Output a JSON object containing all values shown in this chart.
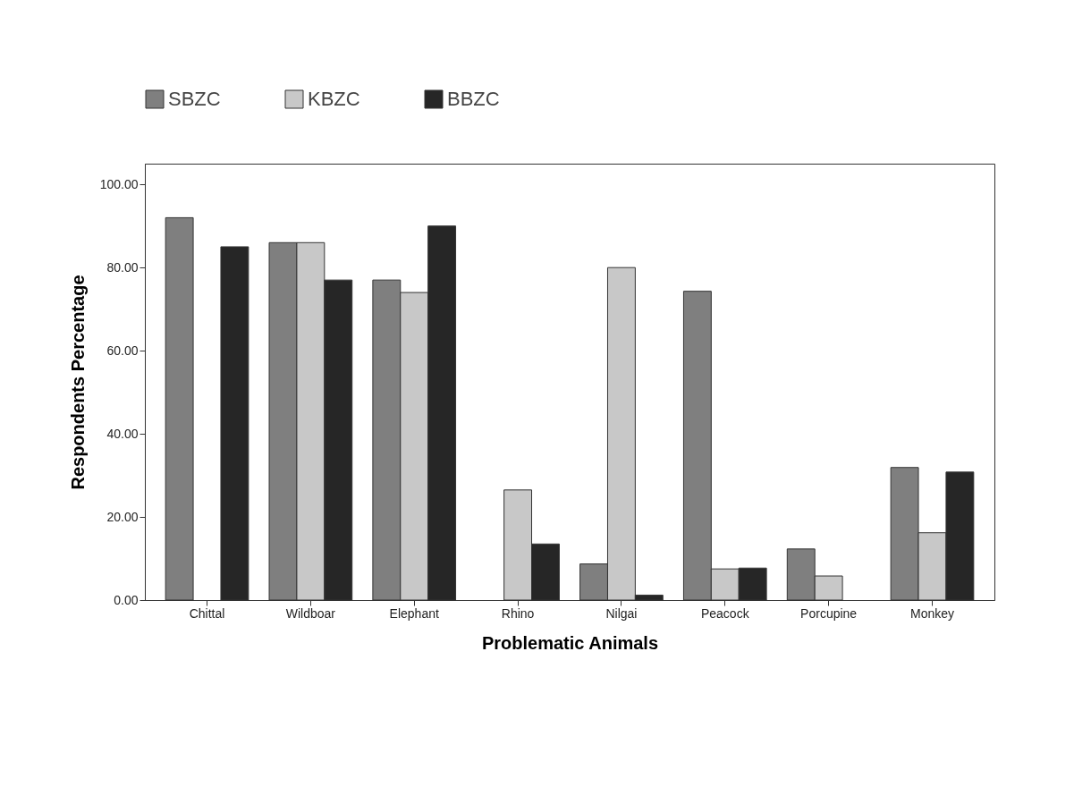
{
  "chart_data": {
    "type": "bar",
    "xlabel": "Problematic Animals",
    "ylabel": "Respondents Percentage",
    "categories": [
      "Chittal",
      "Wildboar",
      "Elephant",
      "Rhino",
      "Nilgai",
      "Peacock",
      "Porcupine",
      "Monkey"
    ],
    "series": [
      {
        "name": "SBZC",
        "color": "#7f7f7f",
        "values": [
          92,
          86,
          77,
          0,
          8.7,
          74.3,
          12.3,
          31.9
        ]
      },
      {
        "name": "KBZC",
        "color": "#c8c8c8",
        "values": [
          0,
          86,
          74,
          26.5,
          80,
          7.5,
          5.8,
          16.2
        ]
      },
      {
        "name": "BBZC",
        "color": "#262626",
        "values": [
          85,
          77,
          90,
          13.5,
          1.2,
          7.7,
          0,
          30.8
        ]
      }
    ],
    "ylim": [
      0,
      105
    ],
    "yticks": [
      {
        "value": 0,
        "label": "0.00"
      },
      {
        "value": 20,
        "label": "20.00"
      },
      {
        "value": 40,
        "label": "40.00"
      },
      {
        "value": 60,
        "label": "60.00"
      },
      {
        "value": 80,
        "label": "80.00"
      },
      {
        "value": 100,
        "label": "100.00"
      }
    ],
    "grid": false,
    "legend": "top"
  }
}
